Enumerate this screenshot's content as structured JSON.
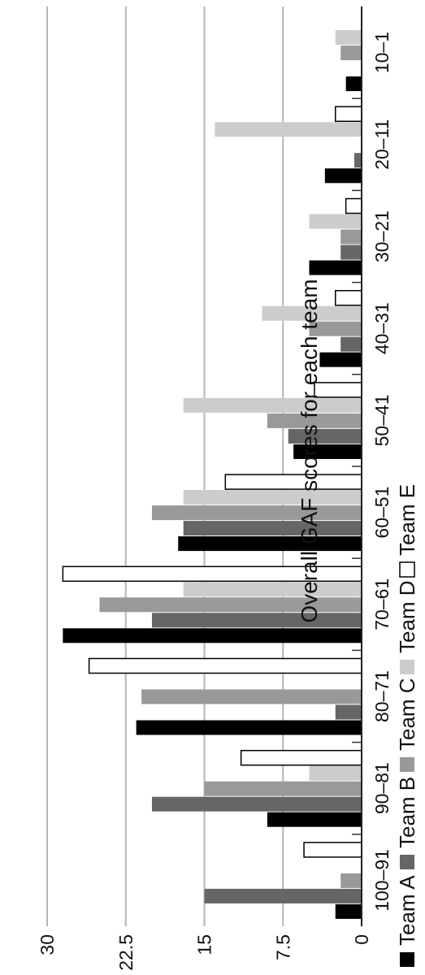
{
  "chart_data": {
    "type": "bar",
    "orientation": "horizontal",
    "title": "Overall GAF scores for each team",
    "categories": [
      "100–91",
      "90–81",
      "80–71",
      "70–61",
      "60–51",
      "50–41",
      "40–31",
      "30–21",
      "20–11",
      "10–1"
    ],
    "value_axis": {
      "min": 0,
      "max": 30,
      "ticks": [
        "0",
        "7.5",
        "15",
        "22.5",
        "30"
      ]
    },
    "grid": true,
    "legend_position": "bottom",
    "series": [
      {
        "name": "Team A",
        "color": "#000000",
        "values": [
          2.5,
          9,
          21.5,
          28.5,
          17.5,
          6.5,
          4,
          5,
          3.5,
          1.5
        ]
      },
      {
        "name": "Team B",
        "color": "#666666",
        "values": [
          15,
          20,
          2.5,
          20,
          17,
          7,
          2,
          2,
          0.7,
          0
        ]
      },
      {
        "name": "Team C",
        "color": "#999999",
        "values": [
          2,
          15,
          21,
          25,
          20,
          9,
          5,
          2,
          0,
          2
        ]
      },
      {
        "name": "Team D",
        "color": "#cccccc",
        "values": [
          0,
          5,
          0,
          17,
          17,
          17,
          9.5,
          5,
          14,
          2.5
        ]
      },
      {
        "name": "Team E",
        "color": "#ffffff",
        "values": [
          5.5,
          11.5,
          26,
          28.5,
          13,
          4.5,
          2.5,
          1.5,
          2.5,
          0
        ]
      }
    ]
  }
}
